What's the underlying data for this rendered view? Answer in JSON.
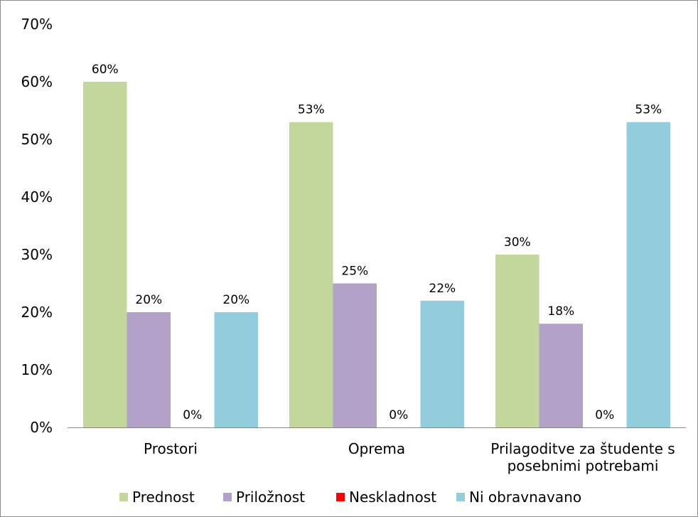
{
  "chart_data": {
    "type": "bar",
    "categories": [
      "Prostori",
      "Oprema",
      "Prilagoditve za študente s posebnimi potrebami"
    ],
    "category_lines": [
      [
        "Prostori"
      ],
      [
        "Oprema"
      ],
      [
        "Prilagoditve za študente s",
        "posebnimi potrebami"
      ]
    ],
    "series": [
      {
        "name": "Prednost",
        "values": [
          60,
          53,
          30
        ],
        "labels": [
          "60%",
          "53%",
          "30%"
        ],
        "color": "#c3d69b"
      },
      {
        "name": "Priložnost",
        "values": [
          20,
          25,
          18
        ],
        "labels": [
          "20%",
          "25%",
          "18%"
        ],
        "color": "#b3a2c7"
      },
      {
        "name": "Neskladnost",
        "values": [
          0,
          0,
          0
        ],
        "labels": [
          "0%",
          "0%",
          "0%"
        ],
        "color": "#ff0000"
      },
      {
        "name": "Ni obravnavano",
        "values": [
          20,
          22,
          53
        ],
        "labels": [
          "20%",
          "22%",
          "53%"
        ],
        "color": "#93cddd"
      }
    ],
    "ylim": [
      0,
      70
    ],
    "yticks": [
      "0%",
      "10%",
      "20%",
      "30%",
      "40%",
      "50%",
      "60%",
      "70%"
    ],
    "grid": false,
    "legend_position": "bottom",
    "title": "",
    "xlabel": "",
    "ylabel": ""
  }
}
